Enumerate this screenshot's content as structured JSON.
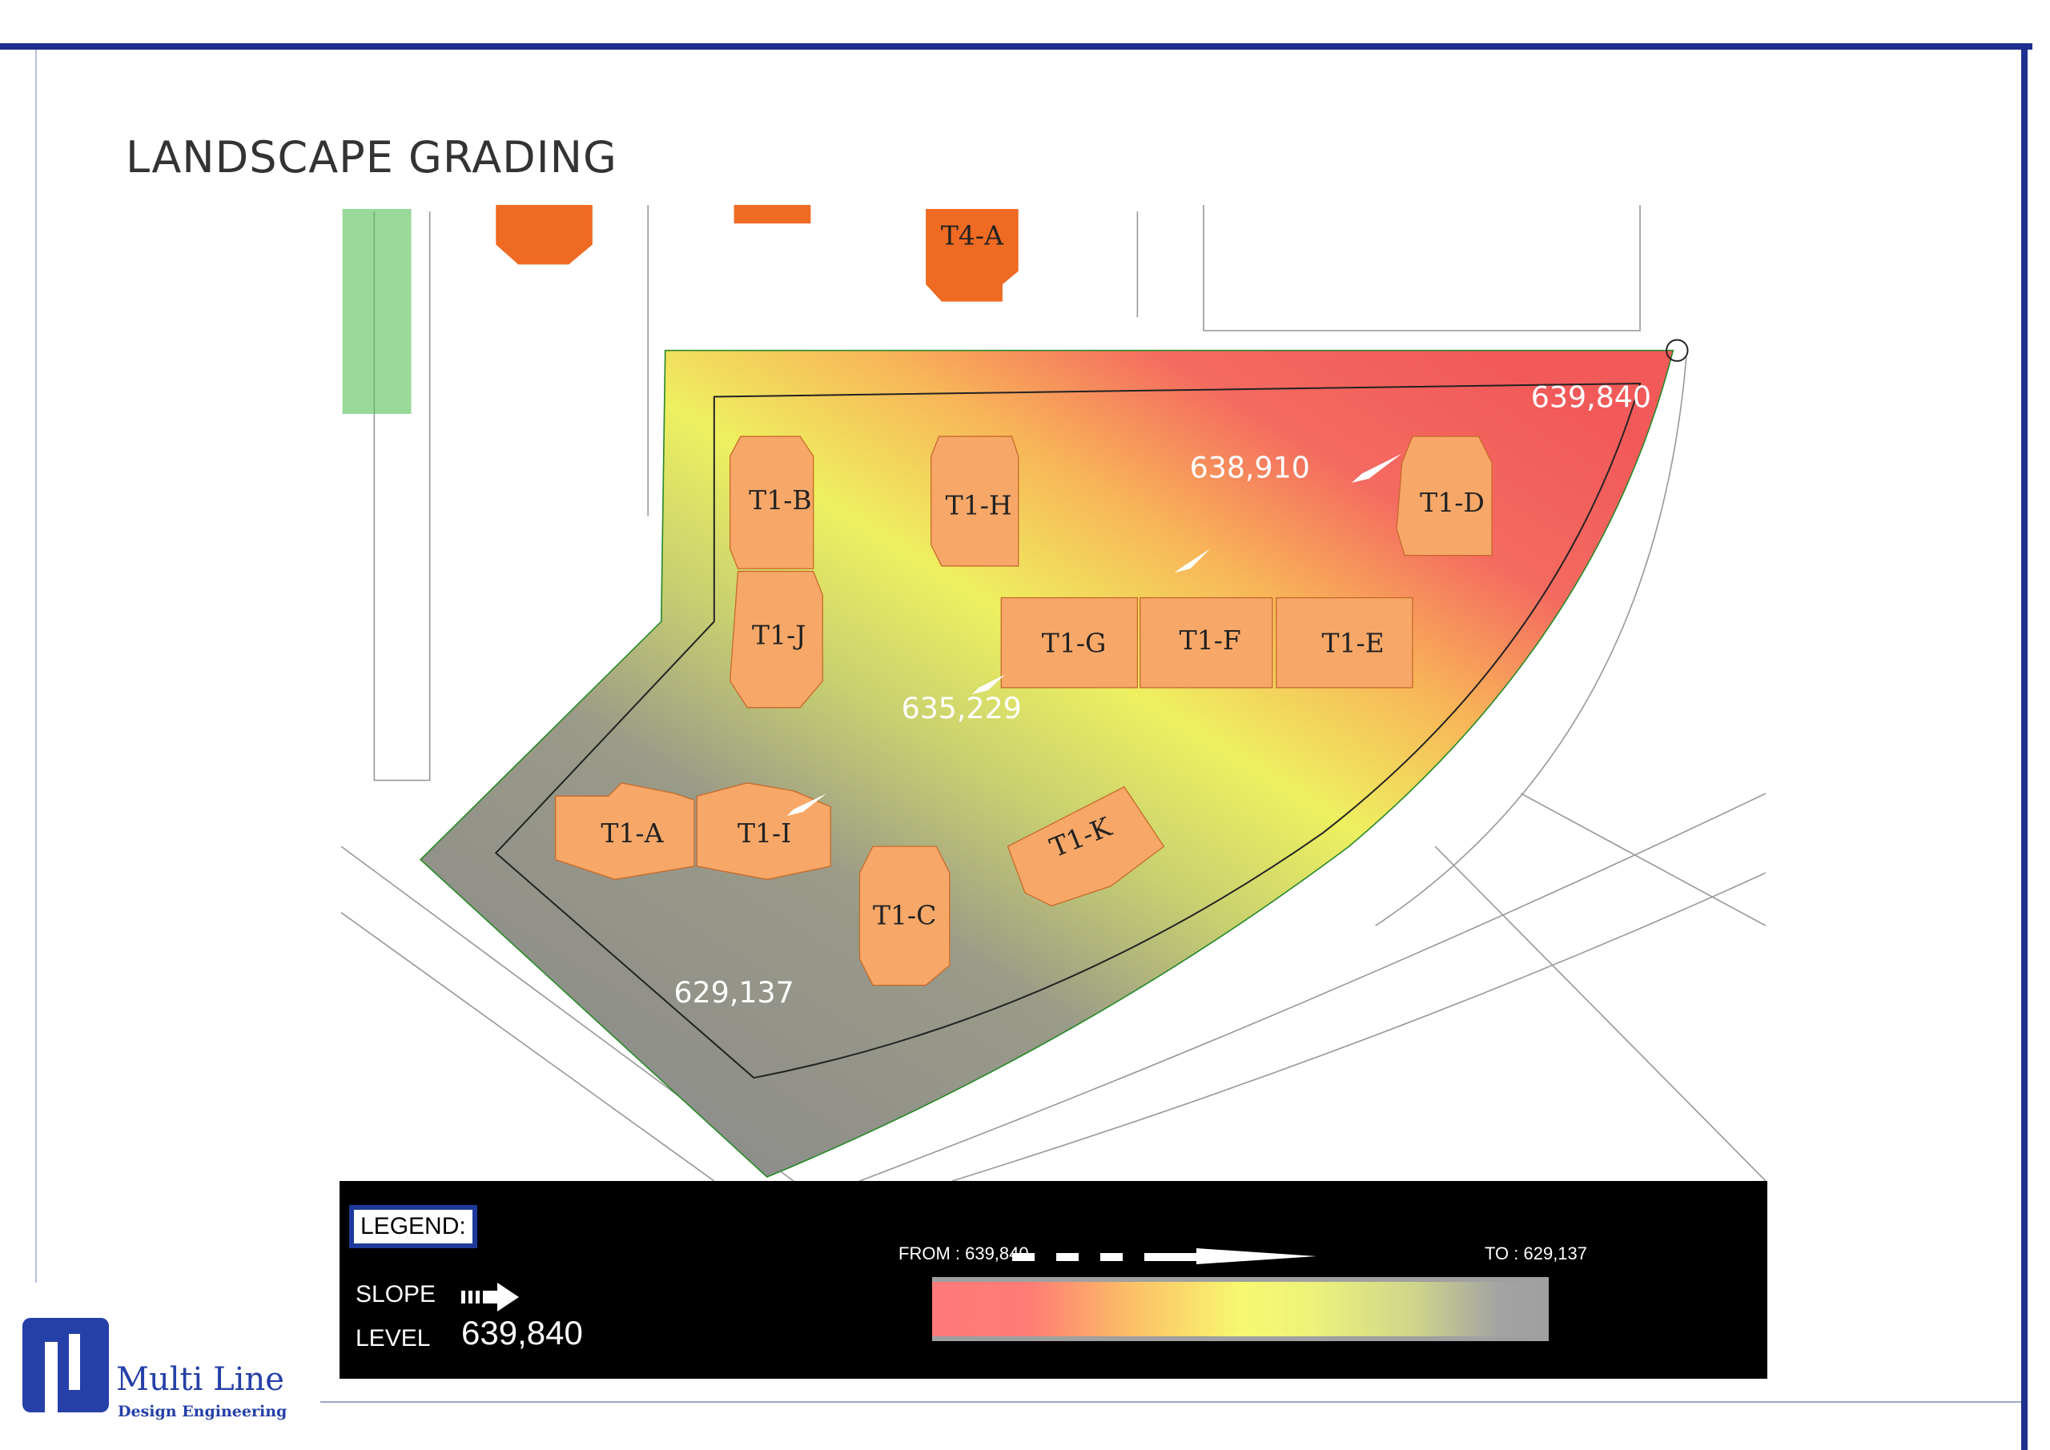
{
  "page": {
    "title": "LANDSCAPE GRADING"
  },
  "map": {
    "buildings": [
      {
        "id": "T1-B"
      },
      {
        "id": "T1-J"
      },
      {
        "id": "T1-H"
      },
      {
        "id": "T1-D"
      },
      {
        "id": "T1-G"
      },
      {
        "id": "T1-F"
      },
      {
        "id": "T1-E"
      },
      {
        "id": "T1-A"
      },
      {
        "id": "T1-I"
      },
      {
        "id": "T1-C"
      },
      {
        "id": "T1-K"
      },
      {
        "id": "T4-A"
      }
    ],
    "levels": [
      "639,840",
      "638,910",
      "635,229",
      "629,137"
    ]
  },
  "legend": {
    "title": "LEGEND:",
    "slope_label": "SLOPE",
    "level_label": "LEVEL",
    "level_value": "639,840",
    "from": "FROM : 639,840",
    "to": "TO : 629,137",
    "colors": {
      "high": "#ff7a7a",
      "mid": "#f8f870",
      "low": "#a0a0a0"
    }
  },
  "logo": {
    "name": "Multi Line",
    "subtitle": "Design Engineering",
    "color": "#2540a8"
  },
  "colors": {
    "frame": "#1f2f8f",
    "building": "#f7a868",
    "building_existing": "#ef6a22"
  }
}
